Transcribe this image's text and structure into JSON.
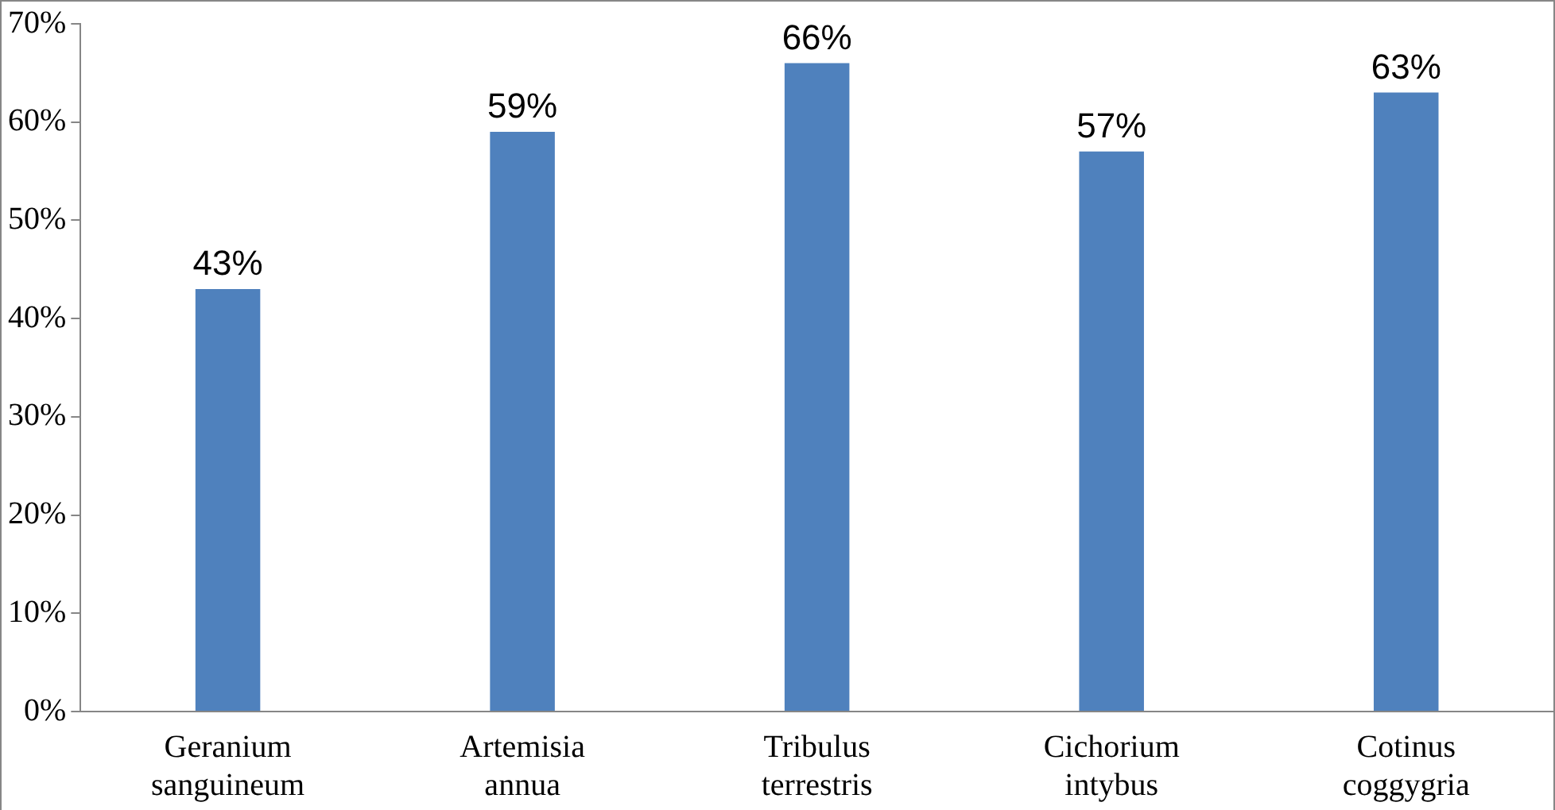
{
  "chart_data": {
    "type": "bar",
    "categories": [
      "Geranium sanguineum",
      "Artemisia annua",
      "Tribulus terrestris",
      "Cichorium intybus",
      "Cotinus coggygria"
    ],
    "values": [
      43,
      59,
      66,
      57,
      63
    ],
    "value_labels": [
      "43%",
      "59%",
      "66%",
      "57%",
      "63%"
    ],
    "color": "#4f81bd",
    "ylim": [
      0,
      70
    ],
    "yticks": [
      {
        "value": 0,
        "label": "0%"
      },
      {
        "value": 10,
        "label": "10%"
      },
      {
        "value": 20,
        "label": "20%"
      },
      {
        "value": 30,
        "label": "30%"
      },
      {
        "value": 40,
        "label": "40%"
      },
      {
        "value": 50,
        "label": "50%"
      },
      {
        "value": 60,
        "label": "60%"
      },
      {
        "value": 70,
        "label": "70%"
      }
    ],
    "grid": false,
    "legend": false
  }
}
